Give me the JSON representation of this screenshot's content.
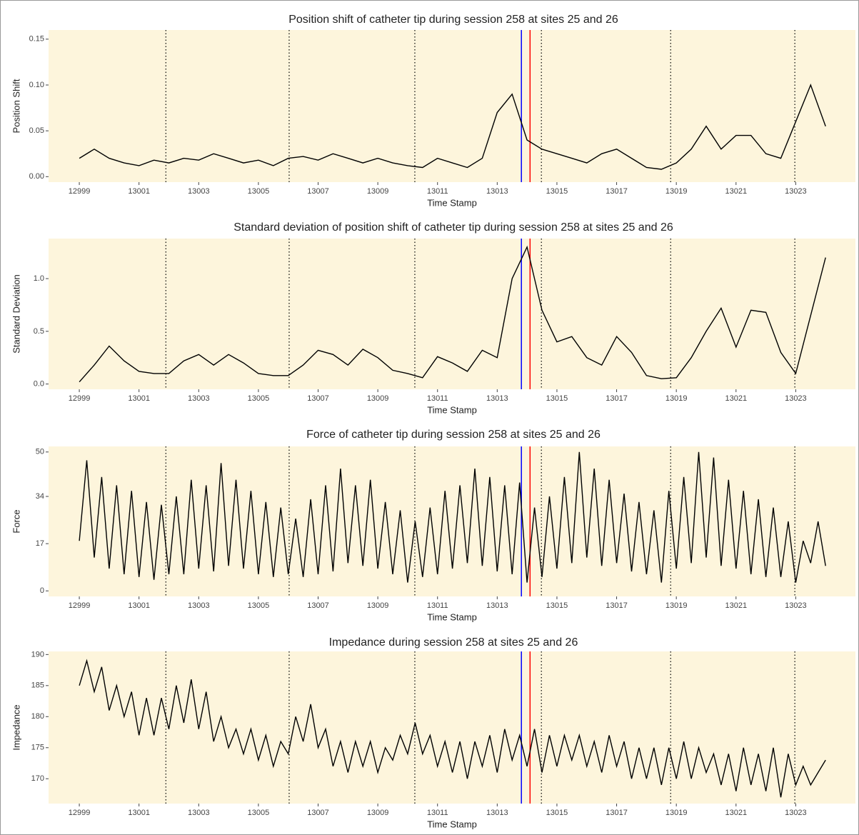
{
  "chart_data": [
    {
      "type": "line",
      "title": "Position shift of catheter tip during session 258 at sites 25 and 26",
      "x_label": "Time Stamp",
      "y_label": "Position Shift",
      "color": "#000000",
      "background": "#fdf5dc",
      "x": [
        12999,
        12999.5,
        13000,
        13000.5,
        13001,
        13001.5,
        13002,
        13002.5,
        13003,
        13003.5,
        13004,
        13004.5,
        13005,
        13005.5,
        13006,
        13006.5,
        13007,
        13007.5,
        13008,
        13008.5,
        13009,
        13009.5,
        13010,
        13010.5,
        13011,
        13011.5,
        13012,
        13012.5,
        13013,
        13013.5,
        13014,
        13014.5,
        13015,
        13015.5,
        13016,
        13016.5,
        13017,
        13017.5,
        13018,
        13018.5,
        13019,
        13019.5,
        13020,
        13020.5,
        13021,
        13021.5,
        13022,
        13022.5,
        13023,
        13023.5,
        13024
      ],
      "values": [
        0.02,
        0.03,
        0.02,
        0.015,
        0.012,
        0.018,
        0.015,
        0.02,
        0.018,
        0.025,
        0.02,
        0.015,
        0.018,
        0.012,
        0.02,
        0.022,
        0.018,
        0.025,
        0.02,
        0.015,
        0.02,
        0.015,
        0.012,
        0.01,
        0.02,
        0.015,
        0.01,
        0.02,
        0.07,
        0.09,
        0.04,
        0.03,
        0.025,
        0.02,
        0.015,
        0.025,
        0.03,
        0.02,
        0.01,
        0.008,
        0.015,
        0.03,
        0.055,
        0.03,
        0.045,
        0.045,
        0.025,
        0.02,
        0.06,
        0.1,
        0.055
      ],
      "xlim": [
        12997.97,
        13025.0
      ],
      "xticks": [
        12999,
        13001,
        13003,
        13005,
        13007,
        13009,
        13011,
        13013,
        13015,
        13017,
        13019,
        13021,
        13023
      ],
      "ylim": [
        -0.006,
        0.16
      ],
      "yticks": [
        {
          "value": 0,
          "label": "0.00"
        },
        0.05,
        {
          "value": 0.1,
          "label": "0.10"
        },
        0.15
      ],
      "vlines": [
        {
          "x": 13001.9,
          "color": "#000000",
          "dash": "dotted"
        },
        {
          "x": 13006.03,
          "color": "#000000",
          "dash": "dotted"
        },
        {
          "x": 13010.24,
          "color": "#000000",
          "dash": "dotted"
        },
        {
          "x": 13014.48,
          "color": "#000000",
          "dash": "dotted"
        },
        {
          "x": 13018.81,
          "color": "#000000",
          "dash": "dotted"
        },
        {
          "x": 13022.97,
          "color": "#000000",
          "dash": "dotted"
        },
        {
          "x": 13013.81,
          "color": "#0000ff",
          "dash": "solid"
        },
        {
          "x": 13014.1,
          "color": "#ff0000",
          "dash": "solid"
        }
      ]
    },
    {
      "type": "line",
      "title": "Standard deviation of position shift of catheter tip during session 258 at sites 25 and 26",
      "x_label": "Time Stamp",
      "y_label": "Standard Deviation",
      "color": "#000000",
      "background": "#fdf5dc",
      "x": [
        12999,
        12999.5,
        13000,
        13000.5,
        13001,
        13001.5,
        13002,
        13002.5,
        13003,
        13003.5,
        13004,
        13004.5,
        13005,
        13005.5,
        13006,
        13006.5,
        13007,
        13007.5,
        13008,
        13008.5,
        13009,
        13009.5,
        13010,
        13010.5,
        13011,
        13011.5,
        13012,
        13012.5,
        13013,
        13013.5,
        13014,
        13014.5,
        13015,
        13015.5,
        13016,
        13016.5,
        13017,
        13017.5,
        13018,
        13018.5,
        13019,
        13019.5,
        13020,
        13020.5,
        13021,
        13021.5,
        13022,
        13022.5,
        13023,
        13023.5,
        13024
      ],
      "values": [
        0.02,
        0.18,
        0.36,
        0.22,
        0.12,
        0.1,
        0.1,
        0.22,
        0.28,
        0.18,
        0.28,
        0.2,
        0.1,
        0.08,
        0.08,
        0.18,
        0.32,
        0.28,
        0.18,
        0.33,
        0.25,
        0.13,
        0.1,
        0.06,
        0.26,
        0.2,
        0.12,
        0.32,
        0.25,
        1.0,
        1.3,
        0.7,
        0.4,
        0.45,
        0.25,
        0.18,
        0.45,
        0.3,
        0.08,
        0.05,
        0.06,
        0.25,
        0.5,
        0.72,
        0.35,
        0.7,
        0.68,
        0.3,
        0.1,
        0.65,
        1.2
      ],
      "xlim": [
        12997.97,
        13025.0
      ],
      "xticks": [
        12999,
        13001,
        13003,
        13005,
        13007,
        13009,
        13011,
        13013,
        13015,
        13017,
        13019,
        13021,
        13023
      ],
      "ylim": [
        -0.05,
        1.38
      ],
      "yticks": [
        {
          "value": 0,
          "label": "0.0"
        },
        0.5,
        {
          "value": 1,
          "label": "1.0"
        }
      ],
      "vlines": [
        {
          "x": 13001.9,
          "color": "#000000",
          "dash": "dotted"
        },
        {
          "x": 13006.03,
          "color": "#000000",
          "dash": "dotted"
        },
        {
          "x": 13010.24,
          "color": "#000000",
          "dash": "dotted"
        },
        {
          "x": 13014.48,
          "color": "#000000",
          "dash": "dotted"
        },
        {
          "x": 13018.81,
          "color": "#000000",
          "dash": "dotted"
        },
        {
          "x": 13022.97,
          "color": "#000000",
          "dash": "dotted"
        },
        {
          "x": 13013.81,
          "color": "#0000ff",
          "dash": "solid"
        },
        {
          "x": 13014.1,
          "color": "#ff0000",
          "dash": "solid"
        }
      ]
    },
    {
      "type": "line",
      "title": "Force of catheter tip during session 258 at sites 25 and 26",
      "x_label": "Time Stamp",
      "y_label": "Force",
      "color": "#000000",
      "background": "#fdf5dc",
      "x": [
        12999,
        12999.25,
        12999.5,
        12999.75,
        13000,
        13000.25,
        13000.5,
        13000.75,
        13001,
        13001.25,
        13001.5,
        13001.75,
        13002,
        13002.25,
        13002.5,
        13002.75,
        13003,
        13003.25,
        13003.5,
        13003.75,
        13004,
        13004.25,
        13004.5,
        13004.75,
        13005,
        13005.25,
        13005.5,
        13005.75,
        13006,
        13006.25,
        13006.5,
        13006.75,
        13007,
        13007.25,
        13007.5,
        13007.75,
        13008,
        13008.25,
        13008.5,
        13008.75,
        13009,
        13009.25,
        13009.5,
        13009.75,
        13010,
        13010.25,
        13010.5,
        13010.75,
        13011,
        13011.25,
        13011.5,
        13011.75,
        13012,
        13012.25,
        13012.5,
        13012.75,
        13013,
        13013.25,
        13013.5,
        13013.75,
        13014,
        13014.25,
        13014.5,
        13014.75,
        13015,
        13015.25,
        13015.5,
        13015.75,
        13016,
        13016.25,
        13016.5,
        13016.75,
        13017,
        13017.25,
        13017.5,
        13017.75,
        13018,
        13018.25,
        13018.5,
        13018.75,
        13019,
        13019.25,
        13019.5,
        13019.75,
        13020,
        13020.25,
        13020.5,
        13020.75,
        13021,
        13021.25,
        13021.5,
        13021.75,
        13022,
        13022.25,
        13022.5,
        13022.75,
        13023,
        13023.25,
        13023.5,
        13023.75,
        13024
      ],
      "values": [
        18,
        47,
        12,
        41,
        8,
        38,
        6,
        36,
        5,
        32,
        4,
        31,
        6,
        34,
        6,
        40,
        8,
        38,
        7,
        46,
        9,
        40,
        8,
        36,
        6,
        32,
        5,
        30,
        6,
        26,
        5,
        33,
        6,
        38,
        7,
        44,
        10,
        38,
        9,
        40,
        8,
        32,
        6,
        29,
        3,
        25,
        5,
        30,
        6,
        36,
        8,
        38,
        10,
        44,
        9,
        41,
        7,
        38,
        6,
        39,
        3,
        30,
        5,
        34,
        8,
        41,
        10,
        50,
        12,
        44,
        9,
        40,
        10,
        35,
        7,
        32,
        6,
        29,
        3,
        36,
        8,
        41,
        10,
        50,
        12,
        48,
        9,
        40,
        8,
        36,
        6,
        33,
        5,
        30,
        5,
        25,
        3,
        18,
        10,
        25,
        9
      ],
      "xlim": [
        12997.97,
        13025.0
      ],
      "xticks": [
        12999,
        13001,
        13003,
        13005,
        13007,
        13009,
        13011,
        13013,
        13015,
        13017,
        13019,
        13021,
        13023
      ],
      "ylim": [
        -2,
        52
      ],
      "yticks": [
        0,
        17,
        34,
        50
      ],
      "vlines": [
        {
          "x": 13001.9,
          "color": "#000000",
          "dash": "dotted"
        },
        {
          "x": 13006.03,
          "color": "#000000",
          "dash": "dotted"
        },
        {
          "x": 13010.24,
          "color": "#000000",
          "dash": "dotted"
        },
        {
          "x": 13014.48,
          "color": "#000000",
          "dash": "dotted"
        },
        {
          "x": 13018.81,
          "color": "#000000",
          "dash": "dotted"
        },
        {
          "x": 13022.97,
          "color": "#000000",
          "dash": "dotted"
        },
        {
          "x": 13013.81,
          "color": "#0000ff",
          "dash": "solid"
        },
        {
          "x": 13014.1,
          "color": "#ff0000",
          "dash": "solid"
        }
      ]
    },
    {
      "type": "line",
      "title": "Impedance during session 258 at sites 25 and 26",
      "x_label": "Time Stamp",
      "y_label": "Impedance",
      "color": "#000000",
      "background": "#fdf5dc",
      "x": [
        12999,
        12999.25,
        12999.5,
        12999.75,
        13000,
        13000.25,
        13000.5,
        13000.75,
        13001,
        13001.25,
        13001.5,
        13001.75,
        13002,
        13002.25,
        13002.5,
        13002.75,
        13003,
        13003.25,
        13003.5,
        13003.75,
        13004,
        13004.25,
        13004.5,
        13004.75,
        13005,
        13005.25,
        13005.5,
        13005.75,
        13006,
        13006.25,
        13006.5,
        13006.75,
        13007,
        13007.25,
        13007.5,
        13007.75,
        13008,
        13008.25,
        13008.5,
        13008.75,
        13009,
        13009.25,
        13009.5,
        13009.75,
        13010,
        13010.25,
        13010.5,
        13010.75,
        13011,
        13011.25,
        13011.5,
        13011.75,
        13012,
        13012.25,
        13012.5,
        13012.75,
        13013,
        13013.25,
        13013.5,
        13013.75,
        13014,
        13014.25,
        13014.5,
        13014.75,
        13015,
        13015.25,
        13015.5,
        13015.75,
        13016,
        13016.25,
        13016.5,
        13016.75,
        13017,
        13017.25,
        13017.5,
        13017.75,
        13018,
        13018.25,
        13018.5,
        13018.75,
        13019,
        13019.25,
        13019.5,
        13019.75,
        13020,
        13020.25,
        13020.5,
        13020.75,
        13021,
        13021.25,
        13021.5,
        13021.75,
        13022,
        13022.25,
        13022.5,
        13022.75,
        13023,
        13023.25,
        13023.5,
        13023.75,
        13024
      ],
      "values": [
        185,
        189,
        184,
        188,
        181,
        185,
        180,
        184,
        177,
        183,
        177,
        183,
        178,
        185,
        179,
        186,
        178,
        184,
        176,
        180,
        175,
        178,
        174,
        178,
        173,
        177,
        172,
        176,
        174,
        180,
        176,
        182,
        175,
        178,
        172,
        176,
        171,
        176,
        172,
        176,
        171,
        175,
        173,
        177,
        174,
        179,
        174,
        177,
        172,
        176,
        171,
        176,
        170,
        176,
        172,
        177,
        171,
        178,
        173,
        177,
        172,
        178,
        171,
        177,
        172,
        177,
        173,
        177,
        172,
        176,
        171,
        177,
        172,
        176,
        170,
        175,
        170,
        175,
        169,
        175,
        170,
        176,
        170,
        175,
        171,
        174,
        169,
        174,
        168,
        175,
        169,
        174,
        168,
        175,
        167,
        174,
        169,
        172,
        169,
        171,
        173
      ],
      "xlim": [
        12997.97,
        13025.0
      ],
      "xticks": [
        12999,
        13001,
        13003,
        13005,
        13007,
        13009,
        13011,
        13013,
        13015,
        13017,
        13019,
        13021,
        13023
      ],
      "ylim": [
        166,
        190.5
      ],
      "yticks": [
        170,
        175,
        180,
        185,
        190
      ],
      "vlines": [
        {
          "x": 13001.9,
          "color": "#000000",
          "dash": "dotted"
        },
        {
          "x": 13006.03,
          "color": "#000000",
          "dash": "dotted"
        },
        {
          "x": 13010.24,
          "color": "#000000",
          "dash": "dotted"
        },
        {
          "x": 13014.48,
          "color": "#000000",
          "dash": "dotted"
        },
        {
          "x": 13018.81,
          "color": "#000000",
          "dash": "dotted"
        },
        {
          "x": 13022.97,
          "color": "#000000",
          "dash": "dotted"
        },
        {
          "x": 13013.81,
          "color": "#0000ff",
          "dash": "solid"
        },
        {
          "x": 13014.1,
          "color": "#ff0000",
          "dash": "solid"
        }
      ]
    }
  ]
}
